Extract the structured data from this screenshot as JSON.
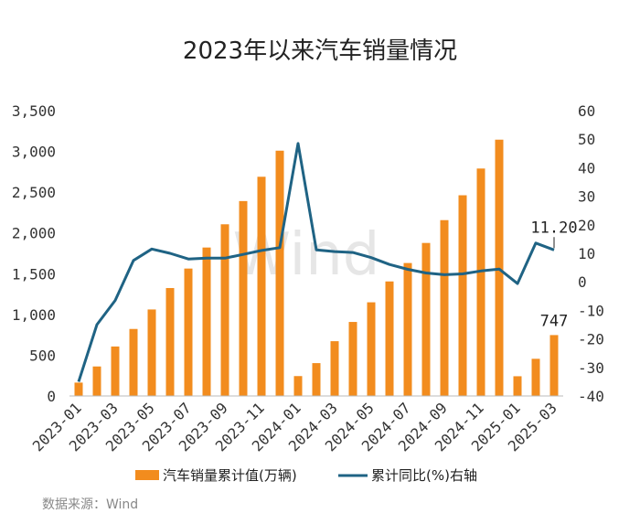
{
  "chart_data": {
    "type": "bar",
    "title": "2023年以来汽车销量情况",
    "categories": [
      "2023-01",
      "2023-02",
      "2023-03",
      "2023-04",
      "2023-05",
      "2023-06",
      "2023-07",
      "2023-08",
      "2023-09",
      "2023-10",
      "2023-11",
      "2023-12",
      "2024-01",
      "2024-02",
      "2024-03",
      "2024-04",
      "2024-05",
      "2024-06",
      "2024-07",
      "2024-08",
      "2024-09",
      "2024-10",
      "2024-11",
      "2024-12",
      "2025-01",
      "2025-02",
      "2025-03"
    ],
    "x_tick_labels": [
      "2023-01",
      "2023-03",
      "2023-05",
      "2023-07",
      "2023-09",
      "2023-11",
      "2024-01",
      "2024-03",
      "2024-05",
      "2024-07",
      "2024-09",
      "2024-11",
      "2025-01",
      "2025-03"
    ],
    "series": [
      {
        "name": "汽车销量累计值(万辆)",
        "type": "bar",
        "axis": "left",
        "color": "#F28C1E",
        "values": [
          164,
          362,
          607,
          822,
          1061,
          1324,
          1563,
          1821,
          2106,
          2391,
          2689,
          3009,
          244,
          403,
          672,
          908,
          1149,
          1405,
          1631,
          1877,
          2157,
          2462,
          2790,
          3144,
          242,
          456,
          747
        ]
      },
      {
        "name": "累计同比(%)右轴",
        "type": "line",
        "axis": "right",
        "color": "#1F6384",
        "values": [
          -35,
          -15,
          -6.5,
          7.5,
          11.5,
          10,
          8,
          8.3,
          8.3,
          9.6,
          11,
          12,
          48.5,
          11.2,
          10.6,
          10.3,
          8.5,
          6.1,
          4.4,
          3.1,
          2.5,
          2.8,
          3.8,
          4.5,
          -0.6,
          13.6,
          11.2
        ]
      }
    ],
    "left_axis": {
      "ylim": [
        0,
        3500
      ],
      "ticks": [
        0,
        500,
        1000,
        1500,
        2000,
        2500,
        3000,
        3500
      ],
      "tick_labels": [
        "0",
        "500",
        "1,000",
        "1,500",
        "2,000",
        "2,500",
        "3,000",
        "3,500"
      ]
    },
    "right_axis": {
      "ylim": [
        -40,
        60
      ],
      "ticks": [
        -40,
        -30,
        -20,
        -10,
        0,
        10,
        20,
        30,
        40,
        50,
        60
      ],
      "tick_labels": [
        "-40",
        "-30",
        "-20",
        "-10",
        "0",
        "10",
        "20",
        "30",
        "40",
        "50",
        "60"
      ]
    },
    "annotations": {
      "last_bar_label": "747",
      "last_line_label": "11.20"
    },
    "legend_position": "bottom",
    "grid": false
  },
  "watermark": "Wind",
  "source": "数据来源：Wind"
}
